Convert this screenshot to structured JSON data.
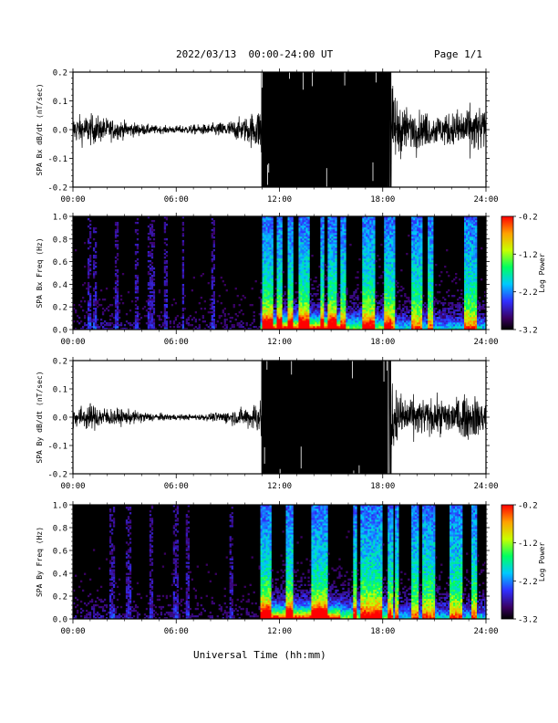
{
  "header": {
    "date_range": "2022/03/13  00:00-24:00 UT",
    "page": "Page 1/1"
  },
  "x_axis": {
    "title": "Universal Time (hh:mm)",
    "ticks": [
      "00:00",
      "06:00",
      "12:00",
      "18:00",
      "24:00"
    ]
  },
  "chart_data": [
    {
      "type": "line",
      "ylabel": "SPA Bx dB/dt (nT/sec)",
      "xlim": [
        0,
        24
      ],
      "ylim": [
        -0.2,
        0.2
      ],
      "ytick_labels": [
        "-0.2",
        "-0.1",
        "0.0",
        "0.1",
        "0.2"
      ],
      "xlabels": [
        "00:00",
        "06:00",
        "12:00",
        "18:00",
        "24:00"
      ],
      "envelope": {
        "hours": [
          0,
          1,
          2,
          3,
          4,
          5,
          6,
          7,
          8,
          9,
          10,
          10.9,
          11,
          12,
          13,
          14,
          15,
          16,
          17,
          18,
          18.5,
          19,
          20,
          21,
          22,
          23,
          24
        ],
        "amplitude": [
          0.07,
          0.08,
          0.06,
          0.045,
          0.03,
          0.02,
          0.02,
          0.025,
          0.03,
          0.045,
          0.065,
          0.12,
          0.25,
          0.25,
          0.25,
          0.25,
          0.25,
          0.25,
          0.25,
          0.25,
          0.2,
          0.13,
          0.1,
          0.08,
          0.09,
          0.12,
          0.12
        ]
      }
    },
    {
      "type": "heatmap",
      "ylabel": "SPA Bx Freq (Hz)",
      "xlim": [
        0,
        24
      ],
      "ylim": [
        0,
        1.0
      ],
      "ytick_labels": [
        "0.0",
        "0.2",
        "0.4",
        "0.6",
        "0.8",
        "1.0"
      ],
      "xlabels": [
        "00:00",
        "06:00",
        "12:00",
        "18:00",
        "24:00"
      ],
      "colorbar": {
        "label": "Log Power",
        "range": [
          -3.2,
          -0.2
        ],
        "tick_labels": [
          "-0.2",
          "-1.2",
          "-2.2",
          "-3.2"
        ]
      }
    },
    {
      "type": "line",
      "ylabel": "SPA By dB/dt (nT/sec)",
      "xlim": [
        0,
        24
      ],
      "ylim": [
        -0.2,
        0.2
      ],
      "ytick_labels": [
        "-0.2",
        "-0.1",
        "0.0",
        "0.1",
        "0.2"
      ],
      "xlabels": [
        "00:00",
        "06:00",
        "12:00",
        "18:00",
        "24:00"
      ],
      "envelope": {
        "hours": [
          0,
          1,
          2,
          3,
          4,
          5,
          6,
          7,
          8,
          9,
          10,
          10.9,
          11,
          12,
          13,
          14,
          15,
          16,
          17,
          18,
          18.5,
          19,
          20,
          21,
          22,
          23,
          24
        ],
        "amplitude": [
          0.05,
          0.07,
          0.05,
          0.04,
          0.03,
          0.02,
          0.015,
          0.015,
          0.02,
          0.035,
          0.05,
          0.1,
          0.25,
          0.25,
          0.25,
          0.25,
          0.25,
          0.25,
          0.25,
          0.25,
          0.2,
          0.12,
          0.1,
          0.09,
          0.1,
          0.11,
          0.11
        ]
      }
    },
    {
      "type": "heatmap",
      "ylabel": "SPA By Freq (Hz)",
      "xlim": [
        0,
        24
      ],
      "ylim": [
        0,
        1.0
      ],
      "ytick_labels": [
        "0.0",
        "0.2",
        "0.4",
        "0.6",
        "0.8",
        "1.0"
      ],
      "xlabels": [
        "00:00",
        "06:00",
        "12:00",
        "18:00",
        "24:00"
      ],
      "colorbar": {
        "label": "Log Power",
        "range": [
          -3.2,
          -0.2
        ],
        "tick_labels": [
          "-0.2",
          "-1.2",
          "-2.2",
          "-3.2"
        ]
      }
    }
  ]
}
